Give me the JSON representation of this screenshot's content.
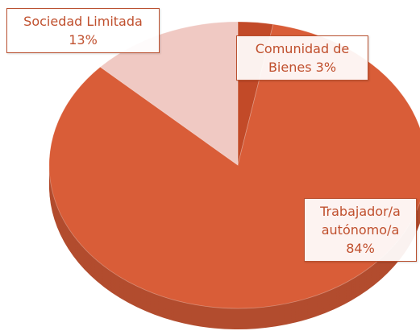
{
  "chart_data": {
    "type": "pie",
    "categories": [
      "Comunidad de Bienes",
      "Trabajador/a autónomo/a",
      "Sociedad Limitada"
    ],
    "values": [
      3,
      84,
      13
    ],
    "value_labels": [
      "3%",
      "84%",
      "13%"
    ],
    "colors": [
      "#c24a28",
      "#d95d38",
      "#f0c9c3"
    ]
  }
}
